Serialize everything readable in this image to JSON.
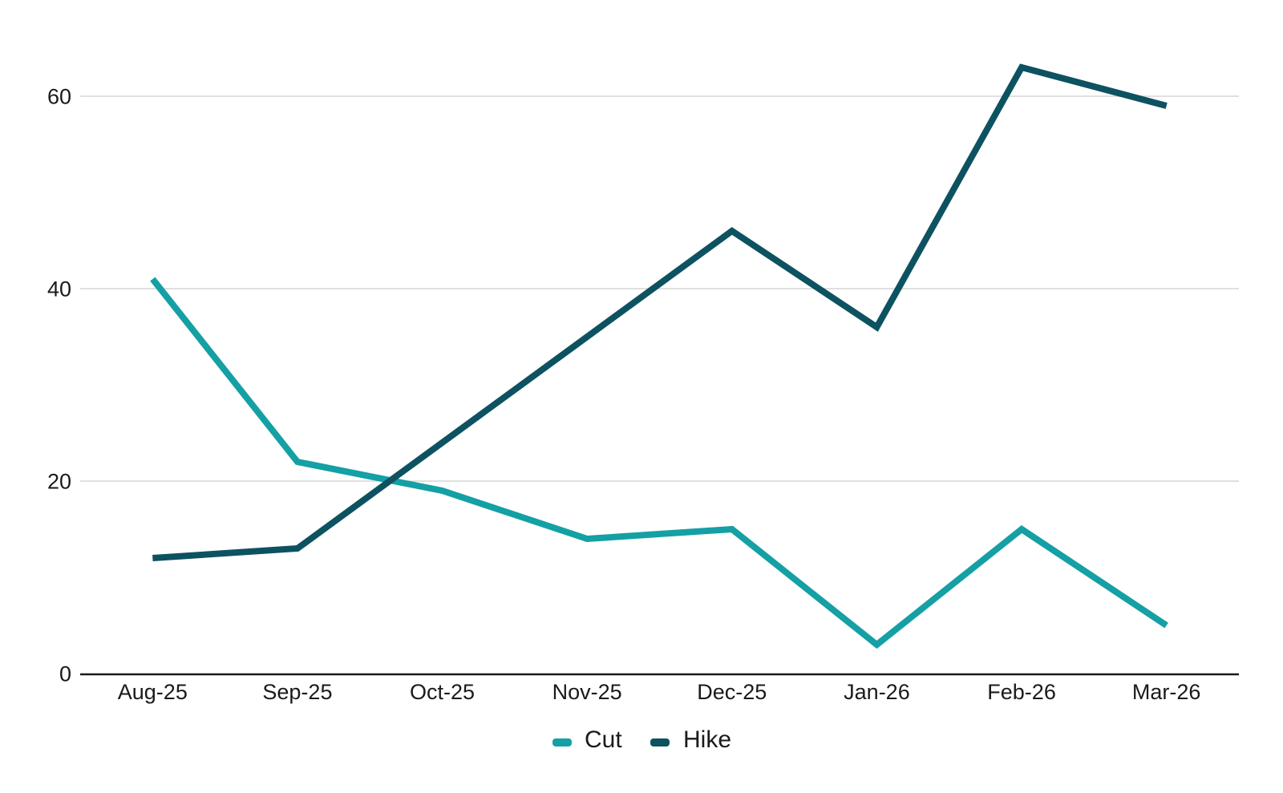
{
  "chart_data": {
    "type": "line",
    "title": "",
    "xlabel": "",
    "ylabel": "",
    "categories": [
      "Aug-25",
      "Sep-25",
      "Oct-25",
      "Nov-25",
      "Dec-25",
      "Jan-26",
      "Feb-26",
      "Mar-26"
    ],
    "series": [
      {
        "name": "Cut",
        "color": "#14A0A4",
        "values": [
          41,
          22,
          19,
          14,
          15,
          3,
          15,
          5
        ]
      },
      {
        "name": "Hike",
        "color": "#0D5260",
        "values": [
          12,
          13,
          24,
          35,
          46,
          36,
          63,
          59
        ]
      }
    ],
    "y_ticks": [
      0,
      20,
      40,
      60
    ],
    "ylim": [
      0,
      66
    ],
    "grid": "horizontal-only",
    "legend_position": "bottom-center",
    "axis_color": "#1a1a1a",
    "gridline_color": "#d6d6d6",
    "label_color": "#1a1a1a"
  }
}
